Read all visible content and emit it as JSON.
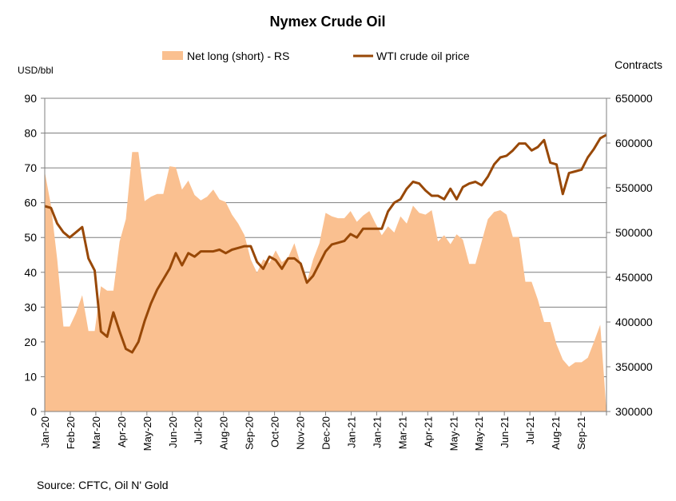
{
  "chart_data": {
    "type": "area",
    "title": "Nymex Crude Oil",
    "source": "Source: CFTC, Oil N' Gold",
    "left_axis": {
      "label": "USD/bbl",
      "min": 0,
      "max": 90,
      "ticks": [
        "0",
        "10",
        "20",
        "30",
        "40",
        "50",
        "60",
        "70",
        "80",
        "90"
      ]
    },
    "right_axis": {
      "label": "Contracts",
      "min": 300000,
      "max": 650000,
      "ticks": [
        "300000",
        "350000",
        "400000",
        "450000",
        "500000",
        "550000",
        "600000",
        "650000"
      ]
    },
    "x_tick_labels": [
      "Jan-20",
      "Feb-20",
      "Mar-20",
      "Apr-20",
      "May-20",
      "Jun-20",
      "Jul-20",
      "Aug-20",
      "Sep-20",
      "Oct-20",
      "Nov-20",
      "Dec-20",
      "Jan-21",
      "Jan-21",
      "Mar-21",
      "Apr-21",
      "May-21",
      "May-21",
      "Jun-21",
      "Jul-21",
      "Aug-21",
      "Sep-21"
    ],
    "x_range_weeks": [
      0,
      90
    ],
    "legend": {
      "placement": "top-center"
    },
    "grid": true,
    "colors": {
      "area": "#FAC090",
      "line": "#984807",
      "grid": "#7f7f7f"
    },
    "series": [
      {
        "name": "Net long (short) - RS",
        "axis": "right",
        "style": "area",
        "x_weeks": [
          0,
          1,
          2,
          3,
          4,
          5,
          6,
          7,
          8,
          9,
          10,
          11,
          12,
          13,
          14,
          15,
          16,
          17,
          18,
          19,
          20,
          21,
          22,
          23,
          24,
          25,
          26,
          27,
          28,
          29,
          30,
          31,
          32,
          33,
          34,
          35,
          36,
          37,
          38,
          39,
          40,
          41,
          42,
          43,
          44,
          45,
          46,
          47,
          48,
          49,
          50,
          51,
          52,
          53,
          54,
          55,
          56,
          57,
          58,
          59,
          60,
          61,
          62,
          63,
          64,
          65,
          66,
          67,
          68,
          69,
          70,
          71,
          72,
          73,
          74,
          75,
          76,
          77,
          78,
          79,
          80,
          81,
          82,
          83,
          84,
          85,
          86,
          87,
          88,
          89,
          90
        ],
        "values": [
          568000,
          530000,
          470000,
          395000,
          395000,
          410000,
          430000,
          390000,
          390000,
          440000,
          435000,
          435000,
          490000,
          515000,
          590000,
          590000,
          535000,
          540000,
          543000,
          543000,
          574000,
          573000,
          548000,
          558000,
          542000,
          536000,
          540000,
          548000,
          537000,
          534000,
          520000,
          510000,
          497000,
          470000,
          455000,
          470000,
          466000,
          480000,
          467000,
          472000,
          488000,
          465000,
          445000,
          470000,
          488000,
          522000,
          518000,
          516000,
          516000,
          524000,
          512000,
          519000,
          524000,
          510000,
          497000,
          507000,
          500000,
          518000,
          510000,
          530000,
          522000,
          520000,
          525000,
          490000,
          497000,
          487000,
          498000,
          492000,
          465000,
          465000,
          490000,
          515000,
          523000,
          525000,
          520000,
          495000,
          495000,
          445000,
          445000,
          425000,
          400000,
          400000,
          375000,
          358000,
          350000,
          355000,
          355000,
          360000,
          378000,
          397000,
          300000
        ]
      },
      {
        "name": "WTI crude oil price",
        "axis": "left",
        "style": "line",
        "x_weeks": [
          0,
          1,
          2,
          3,
          4,
          5,
          6,
          7,
          8,
          9,
          10,
          11,
          12,
          13,
          14,
          15,
          16,
          17,
          18,
          19,
          20,
          21,
          22,
          23,
          24,
          25,
          26,
          27,
          28,
          29,
          30,
          31,
          32,
          33,
          34,
          35,
          36,
          37,
          38,
          39,
          40,
          41,
          42,
          43,
          44,
          45,
          46,
          47,
          48,
          49,
          50,
          51,
          52,
          53,
          54,
          55,
          56,
          57,
          58,
          59,
          60,
          61,
          62,
          63,
          64,
          65,
          66,
          67,
          68,
          69,
          70,
          71,
          72,
          73,
          74,
          75,
          76,
          77,
          78,
          79,
          80,
          81,
          82,
          83,
          84,
          85,
          86,
          87,
          88,
          89,
          90
        ],
        "values": [
          59,
          58.5,
          54,
          51.5,
          50,
          51.5,
          53,
          44,
          40.5,
          23,
          21.5,
          28.5,
          23,
          18,
          17,
          20,
          26,
          31,
          35,
          38,
          41,
          45.5,
          42,
          45.5,
          44.5,
          46,
          46,
          46,
          46.5,
          45.5,
          46.5,
          47,
          47.5,
          47.5,
          43,
          41,
          44.5,
          43.5,
          41,
          44,
          44,
          42.5,
          37,
          39,
          42.5,
          46,
          48,
          48.5,
          49,
          51,
          50,
          52.5,
          52.5,
          52.5,
          52.5,
          57.5,
          60,
          61,
          64,
          66,
          65.5,
          63.5,
          62,
          62,
          61,
          64,
          61,
          64.5,
          65.5,
          66,
          65,
          67.5,
          71,
          73,
          73.5,
          75,
          77,
          77,
          75,
          76,
          78,
          71.5,
          71,
          62.5,
          68.5,
          69,
          69.5,
          73,
          75.5,
          78.5,
          79.5
        ]
      }
    ]
  }
}
